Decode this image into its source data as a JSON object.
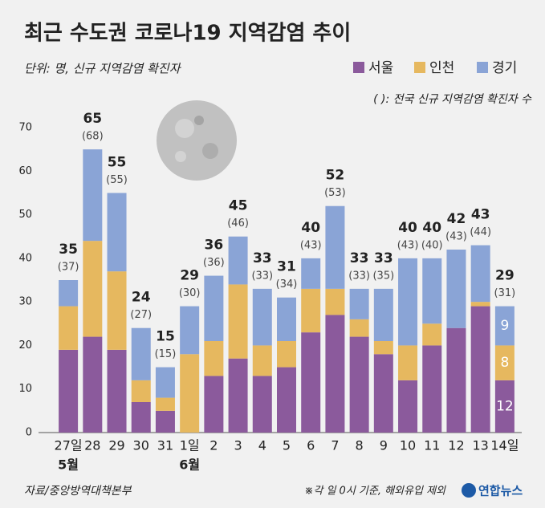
{
  "chart_data": {
    "type": "stacked_bar",
    "title": "최근 수도권 코로나19 지역감염 추이",
    "unit_note": "단위: 명, 신규 지역감염 확진자",
    "paren_note": "( ): 전국 신규 지역감염 확진자 수",
    "source": "자료/중앙방역대책본부",
    "footnote": "※각 일 0시 기준, 해외유입 제외",
    "publisher": "연합뉴스",
    "categories": [
      "27일",
      "28",
      "29",
      "30",
      "31",
      "1일",
      "2",
      "3",
      "4",
      "5",
      "6",
      "7",
      "8",
      "9",
      "10",
      "11",
      "12",
      "13",
      "14일"
    ],
    "month_labels": [
      "5월",
      null,
      null,
      null,
      null,
      "6월",
      null,
      null,
      null,
      null,
      null,
      null,
      null,
      null,
      null,
      null,
      null,
      null,
      null
    ],
    "series": [
      {
        "name": "서울",
        "color": "#8b5a9c",
        "values": [
          19,
          22,
          19,
          7,
          5,
          0,
          13,
          17,
          13,
          15,
          23,
          27,
          22,
          18,
          12,
          20,
          24,
          29,
          12
        ]
      },
      {
        "name": "인천",
        "color": "#e6b85f",
        "values": [
          10,
          22,
          18,
          5,
          3,
          18,
          8,
          17,
          7,
          6,
          10,
          6,
          4,
          3,
          8,
          5,
          0,
          1,
          8
        ]
      },
      {
        "name": "경기",
        "color": "#8aa4d6",
        "values": [
          6,
          21,
          18,
          12,
          7,
          11,
          15,
          11,
          13,
          10,
          7,
          19,
          7,
          12,
          20,
          15,
          18,
          13,
          9
        ]
      }
    ],
    "totals": [
      35,
      65,
      55,
      24,
      15,
      29,
      36,
      45,
      33,
      31,
      40,
      52,
      33,
      33,
      40,
      40,
      42,
      43,
      29
    ],
    "national_totals": [
      37,
      68,
      55,
      27,
      15,
      30,
      36,
      46,
      33,
      34,
      43,
      53,
      33,
      35,
      43,
      40,
      43,
      44,
      31
    ],
    "national_value_labels": [
      "(37)",
      "(68)",
      "(55)",
      "(27)",
      "(15)",
      "(30)",
      "(36)",
      "(46)",
      "(33)",
      "(34)",
      "(43)",
      "(53)",
      "(33)",
      "(35)",
      "(43)",
      "(40)",
      "(43)",
      "(44)",
      "(31)"
    ],
    "ylim": [
      0,
      70
    ],
    "yticks": [
      0,
      10,
      20,
      30,
      40,
      50,
      60,
      70
    ],
    "grid": false
  }
}
